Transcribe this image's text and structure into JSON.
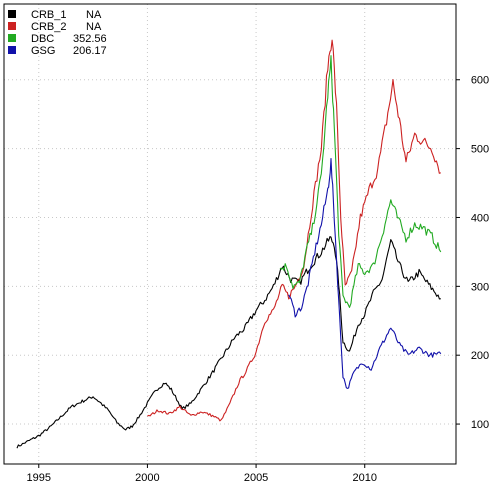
{
  "chart_data": {
    "type": "line",
    "title": "",
    "xlabel": "",
    "ylabel": "",
    "xlim": [
      1993.4,
      2014.2
    ],
    "ylim": [
      42,
      710
    ],
    "grid": true,
    "grid_style": "dotted",
    "y_axis_side": "right",
    "legend_position": "top-left",
    "x_ticks": [
      1995,
      2000,
      2005,
      2010
    ],
    "x_tick_labels": [
      "1995",
      "2000",
      "2005",
      "2010"
    ],
    "y_ticks": [
      100,
      200,
      300,
      400,
      500,
      600
    ],
    "y_tick_labels": [
      "100",
      "200",
      "300",
      "400",
      "500",
      "600"
    ],
    "series": [
      {
        "name": "CRB_1",
        "last_value": "NA",
        "color": "#000000",
        "points": [
          [
            1994.0,
            67
          ],
          [
            1994.5,
            75
          ],
          [
            1995.0,
            83
          ],
          [
            1995.5,
            95
          ],
          [
            1996.0,
            110
          ],
          [
            1996.5,
            125
          ],
          [
            1997.0,
            133
          ],
          [
            1997.5,
            140
          ],
          [
            1997.8,
            132
          ],
          [
            1998.2,
            120
          ],
          [
            1998.6,
            102
          ],
          [
            1999.0,
            92
          ],
          [
            1999.3,
            97
          ],
          [
            1999.6,
            110
          ],
          [
            2000.0,
            130
          ],
          [
            2000.4,
            150
          ],
          [
            2000.8,
            160
          ],
          [
            2001.1,
            150
          ],
          [
            2001.6,
            122
          ],
          [
            2002.0,
            130
          ],
          [
            2002.5,
            152
          ],
          [
            2003.0,
            175
          ],
          [
            2003.5,
            200
          ],
          [
            2004.0,
            225
          ],
          [
            2004.5,
            240
          ],
          [
            2005.0,
            265
          ],
          [
            2005.4,
            280
          ],
          [
            2005.8,
            300
          ],
          [
            2006.2,
            330
          ],
          [
            2006.6,
            310
          ],
          [
            2007.0,
            305
          ],
          [
            2007.5,
            330
          ],
          [
            2008.0,
            350
          ],
          [
            2008.4,
            370
          ],
          [
            2008.6,
            362
          ],
          [
            2008.8,
            305
          ],
          [
            2009.0,
            220
          ],
          [
            2009.3,
            205
          ],
          [
            2009.7,
            245
          ],
          [
            2010.0,
            260
          ],
          [
            2010.4,
            290
          ],
          [
            2010.8,
            310
          ],
          [
            2011.2,
            365
          ],
          [
            2011.6,
            330
          ],
          [
            2012.0,
            305
          ],
          [
            2012.5,
            320
          ],
          [
            2013.0,
            300
          ],
          [
            2013.5,
            282
          ]
        ]
      },
      {
        "name": "CRB_2",
        "last_value": "NA",
        "color": "#cc2222",
        "points": [
          [
            2000.0,
            110
          ],
          [
            2000.5,
            120
          ],
          [
            2001.0,
            115
          ],
          [
            2001.5,
            125
          ],
          [
            2002.0,
            112
          ],
          [
            2002.5,
            118
          ],
          [
            2003.0,
            112
          ],
          [
            2003.4,
            105
          ],
          [
            2003.8,
            130
          ],
          [
            2004.2,
            160
          ],
          [
            2004.6,
            180
          ],
          [
            2005.0,
            205
          ],
          [
            2005.4,
            250
          ],
          [
            2005.8,
            265
          ],
          [
            2006.2,
            300
          ],
          [
            2006.5,
            285
          ],
          [
            2006.8,
            300
          ],
          [
            2007.2,
            330
          ],
          [
            2007.6,
            420
          ],
          [
            2008.0,
            500
          ],
          [
            2008.3,
            620
          ],
          [
            2008.5,
            665
          ],
          [
            2008.7,
            560
          ],
          [
            2008.9,
            400
          ],
          [
            2009.1,
            300
          ],
          [
            2009.4,
            320
          ],
          [
            2009.8,
            400
          ],
          [
            2010.2,
            440
          ],
          [
            2010.6,
            470
          ],
          [
            2011.0,
            540
          ],
          [
            2011.3,
            595
          ],
          [
            2011.6,
            540
          ],
          [
            2011.9,
            480
          ],
          [
            2012.3,
            520
          ],
          [
            2012.7,
            510
          ],
          [
            2013.1,
            500
          ],
          [
            2013.5,
            465
          ]
        ]
      },
      {
        "name": "DBC",
        "last_value": "352.56",
        "color": "#22aa22",
        "points": [
          [
            2006.1,
            325
          ],
          [
            2006.4,
            330
          ],
          [
            2006.7,
            300
          ],
          [
            2007.0,
            305
          ],
          [
            2007.3,
            350
          ],
          [
            2007.6,
            385
          ],
          [
            2008.0,
            460
          ],
          [
            2008.3,
            580
          ],
          [
            2008.45,
            625
          ],
          [
            2008.6,
            530
          ],
          [
            2008.8,
            380
          ],
          [
            2009.0,
            285
          ],
          [
            2009.3,
            270
          ],
          [
            2009.7,
            330
          ],
          [
            2010.0,
            320
          ],
          [
            2010.4,
            330
          ],
          [
            2010.8,
            375
          ],
          [
            2011.2,
            425
          ],
          [
            2011.5,
            400
          ],
          [
            2011.9,
            370
          ],
          [
            2012.3,
            390
          ],
          [
            2012.7,
            385
          ],
          [
            2013.1,
            372
          ],
          [
            2013.5,
            350
          ]
        ]
      },
      {
        "name": "GSG",
        "last_value": "206.17",
        "color": "#1111aa",
        "points": [
          [
            2006.5,
            290
          ],
          [
            2006.8,
            260
          ],
          [
            2007.1,
            270
          ],
          [
            2007.4,
            305
          ],
          [
            2007.7,
            350
          ],
          [
            2008.0,
            390
          ],
          [
            2008.3,
            440
          ],
          [
            2008.45,
            480
          ],
          [
            2008.6,
            400
          ],
          [
            2008.8,
            280
          ],
          [
            2009.0,
            170
          ],
          [
            2009.2,
            150
          ],
          [
            2009.5,
            175
          ],
          [
            2009.9,
            190
          ],
          [
            2010.3,
            180
          ],
          [
            2010.7,
            210
          ],
          [
            2011.2,
            240
          ],
          [
            2011.6,
            215
          ],
          [
            2012.0,
            200
          ],
          [
            2012.5,
            210
          ],
          [
            2013.0,
            200
          ],
          [
            2013.5,
            202
          ]
        ]
      }
    ]
  }
}
